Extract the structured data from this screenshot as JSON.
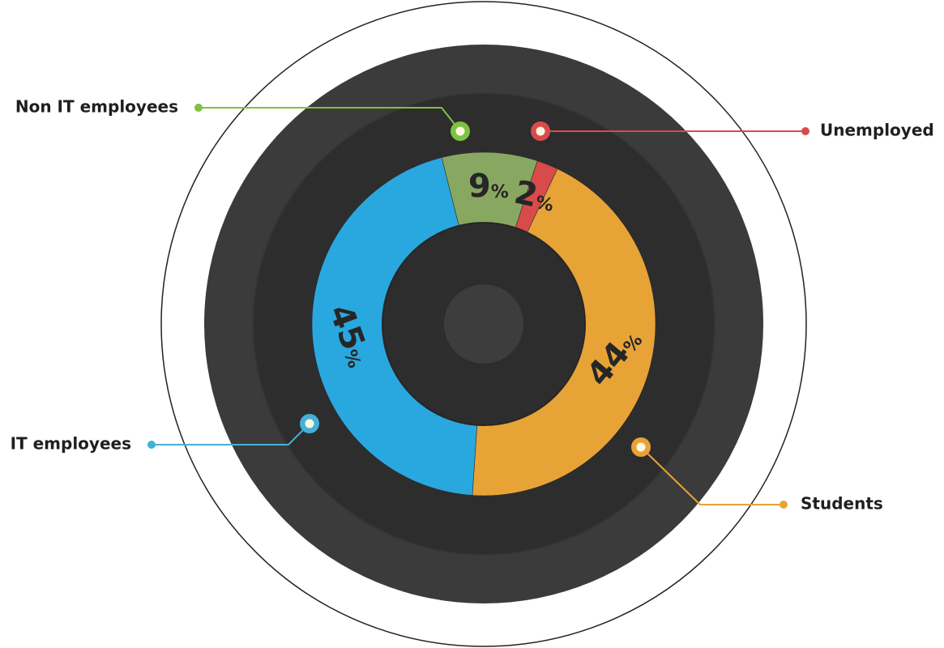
{
  "chart_data": {
    "type": "pie",
    "style": "donut",
    "categories": [
      "Non IT employees",
      "Unemployed",
      "Students",
      "IT employees"
    ],
    "values": [
      9,
      2,
      44,
      45
    ],
    "unit": "%",
    "colors": [
      "#88a862",
      "#d94b4b",
      "#e8a337",
      "#29a8e0"
    ],
    "connector_colors": [
      "#7ec242",
      "#d94b4b",
      "#e8a337",
      "#45b0d8"
    ],
    "labels": [
      "9%",
      "2%",
      "44%",
      "45%"
    ],
    "legend": [
      "Non IT employees",
      "Unemployed",
      "Students",
      "IT employees"
    ]
  }
}
